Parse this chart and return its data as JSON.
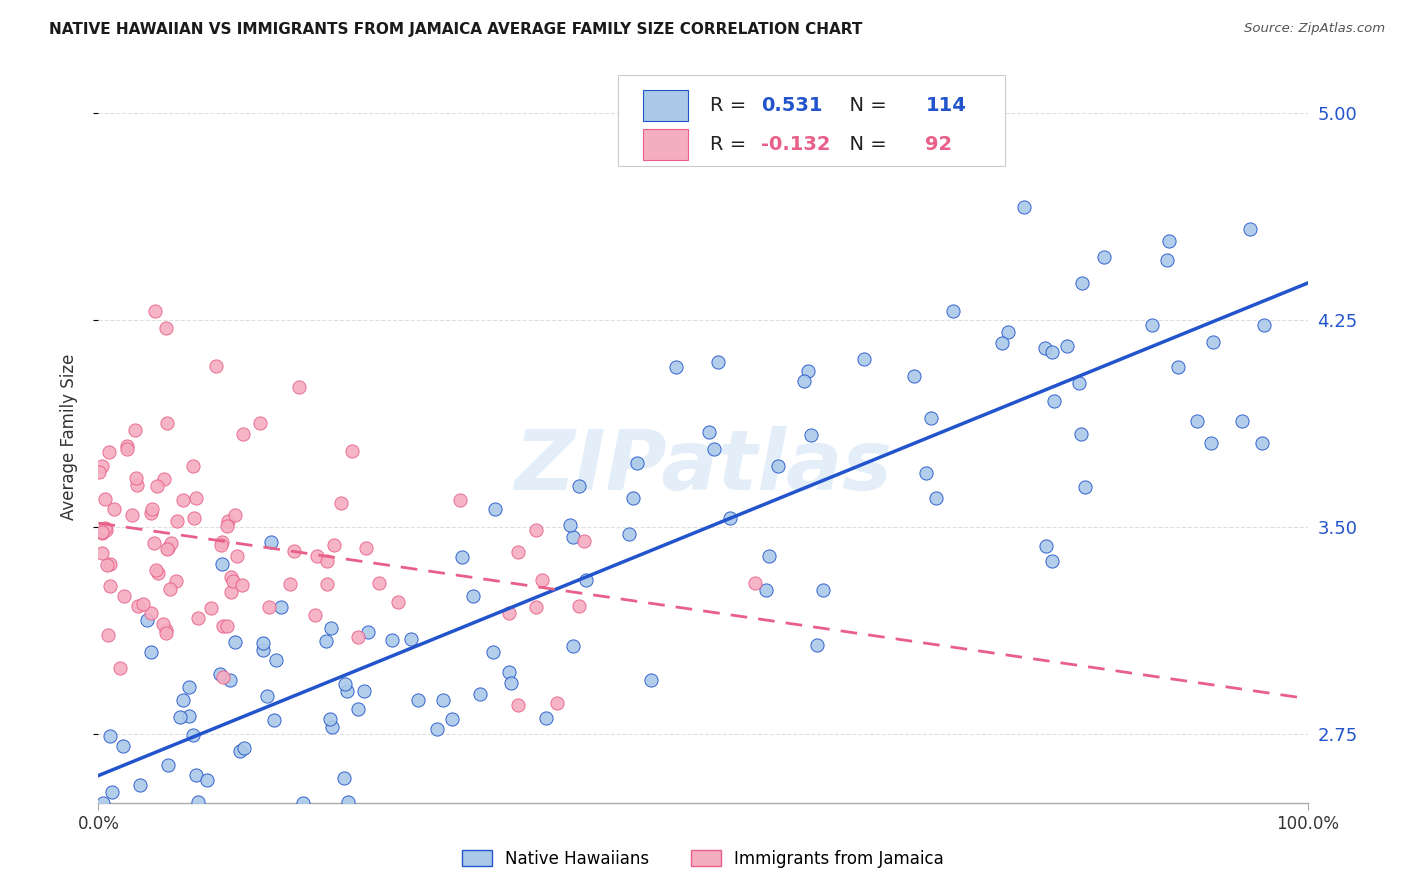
{
  "title": "NATIVE HAWAIIAN VS IMMIGRANTS FROM JAMAICA AVERAGE FAMILY SIZE CORRELATION CHART",
  "source": "Source: ZipAtlas.com",
  "ylabel": "Average Family Size",
  "ylim": [
    2.5,
    5.15
  ],
  "yticks": [
    2.75,
    3.5,
    4.25,
    5.0
  ],
  "xtick_labels": [
    "0.0%",
    "100.0%"
  ],
  "legend_labels": [
    "Native Hawaiians",
    "Immigrants from Jamaica"
  ],
  "blue_R": "0.531",
  "blue_N": "114",
  "pink_R": "-0.132",
  "pink_N": "92",
  "blue_color": "#aac9e8",
  "pink_color": "#f5adc0",
  "blue_line_color": "#2255cc",
  "pink_line_color": "#e8608a",
  "watermark": "ZIPatlas",
  "background_color": "#ffffff",
  "grid_color": "#e0e0e0"
}
